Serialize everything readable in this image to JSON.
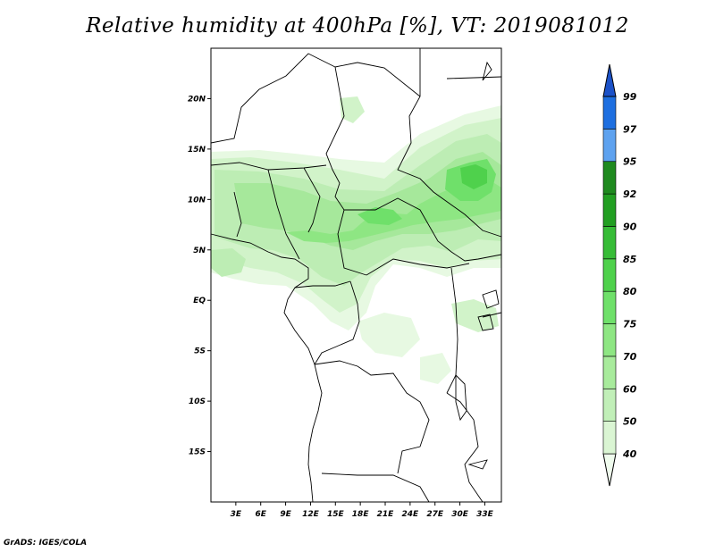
{
  "title": "Relative humidity at 400hPa [%], VT: 2019081012",
  "credit": "GrADS: IGES/COLA",
  "map": {
    "lon_range": [
      0,
      35
    ],
    "lat_range": [
      -20,
      25
    ],
    "lon_ticks": [
      "3E",
      "6E",
      "9E",
      "12E",
      "15E",
      "18E",
      "21E",
      "24E",
      "27E",
      "30E",
      "33E"
    ],
    "lat_ticks": [
      "20N",
      "15N",
      "10N",
      "5N",
      "EQ",
      "5S",
      "10S",
      "15S"
    ]
  },
  "colorbar": {
    "levels": [
      "40",
      "50",
      "60",
      "70",
      "75",
      "80",
      "85",
      "90",
      "92",
      "95",
      "97",
      "99"
    ],
    "colors": [
      "#f0fcee",
      "#daf5d3",
      "#c1efb8",
      "#a8eb9c",
      "#8ee683",
      "#6fe06a",
      "#4fd14c",
      "#37bc37",
      "#229f22",
      "#1f8a1f",
      "#5ea2ef",
      "#1e6fe0",
      "#1c52c8"
    ]
  }
}
